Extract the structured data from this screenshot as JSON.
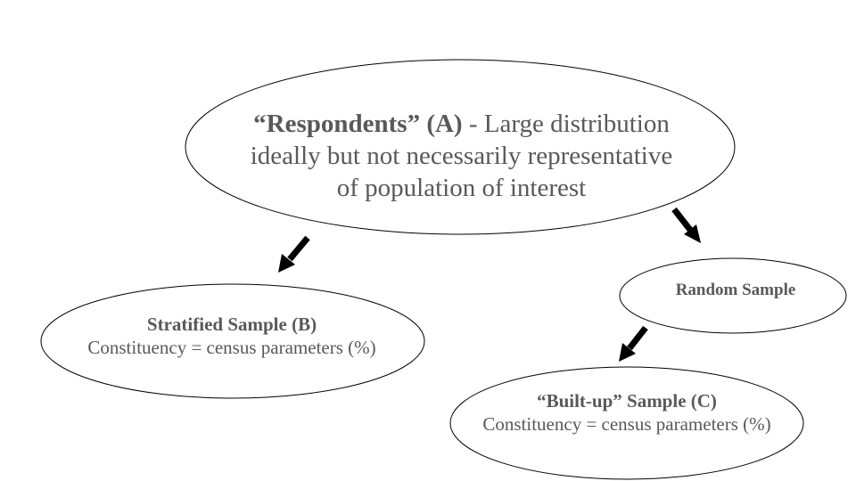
{
  "colors": {
    "text": "#595959",
    "outline": "#000000",
    "arrow": "#000000",
    "background": "#ffffff"
  },
  "nodes": {
    "respondents": {
      "title": "“Respondents” (A)",
      "separator": " - ",
      "line1_rest": "Large distribution",
      "line2": "ideally but not necessarily representative",
      "line3": "of population of interest"
    },
    "stratified": {
      "title": "Stratified Sample (B)",
      "subtitle": "Constituency = census parameters (%)"
    },
    "random": {
      "title": "Random Sample"
    },
    "built_up": {
      "title": "“Built-up” Sample (C)",
      "subtitle": "Constituency = census parameters (%)"
    }
  },
  "edges": [
    {
      "from": "respondents",
      "to": "stratified"
    },
    {
      "from": "respondents",
      "to": "random"
    },
    {
      "from": "random",
      "to": "built_up"
    }
  ]
}
